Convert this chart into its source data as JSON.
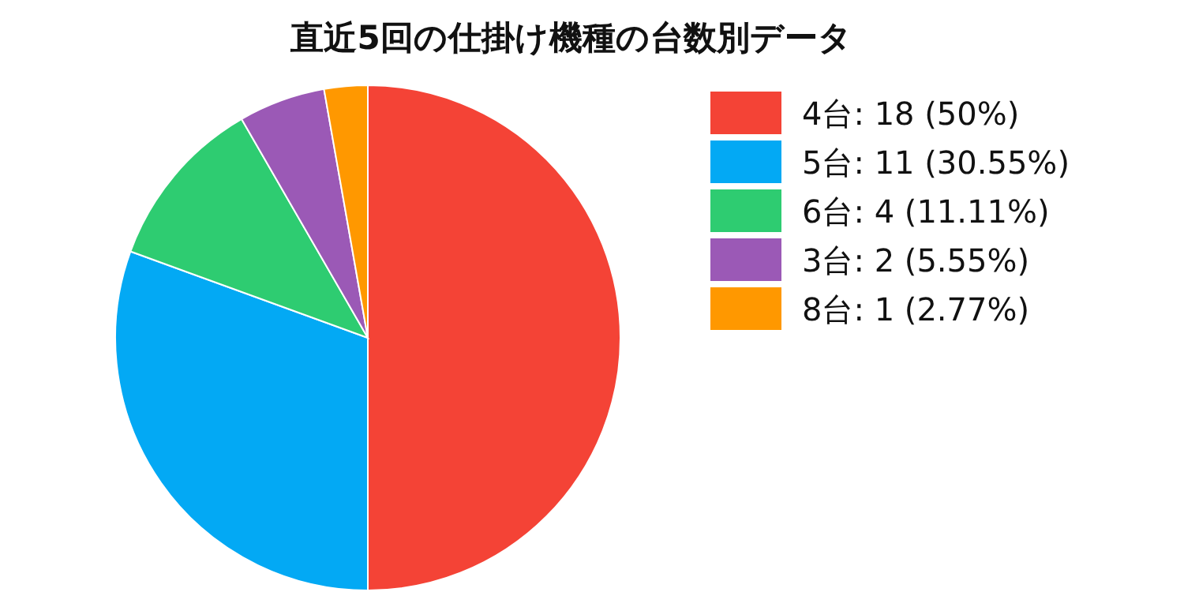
{
  "chart_data": {
    "type": "pie",
    "title": "直近5回の仕掛け機種の台数別データ",
    "categories": [
      "4台",
      "5台",
      "6台",
      "3台",
      "8台"
    ],
    "values": [
      18,
      11,
      4,
      2,
      1
    ],
    "value_labels": [
      "18 (50%)",
      "11 (30.55%)",
      "4 (11.11%)",
      "2 (5.55%)",
      "1 (2.77%)"
    ],
    "colors": [
      "#f44336",
      "#03a9f4",
      "#2ecc71",
      "#9b59b6",
      "#ff9800"
    ],
    "legend": "right"
  }
}
